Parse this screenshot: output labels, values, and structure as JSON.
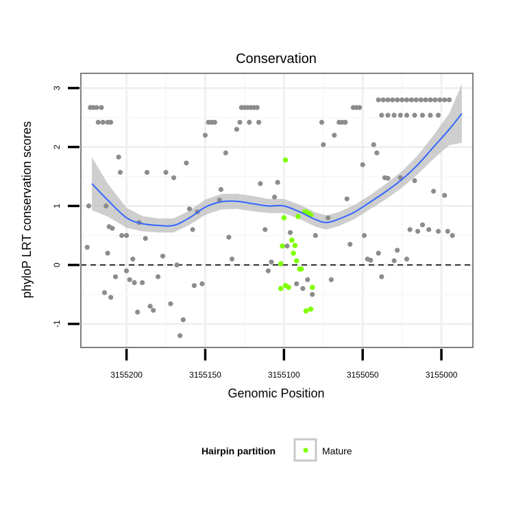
{
  "chart_data": {
    "type": "scatter",
    "title": "Conservation",
    "xlabel": "Genomic Position",
    "ylabel": "phyloP LRT conservation scores",
    "x_reversed": true,
    "xlim": [
      3155229,
      3154980
    ],
    "ylim": [
      -1.4,
      3.25
    ],
    "x_ticks": [
      3155200,
      3155150,
      3155100,
      3155050,
      3155000
    ],
    "x_tick_labels": [
      "3155200",
      "3155150",
      "3155100",
      "3155050",
      "3155000"
    ],
    "y_ticks": [
      -1,
      0,
      1,
      2,
      3
    ],
    "y_tick_labels": [
      "-1",
      "0",
      "1",
      "2",
      "3"
    ],
    "reference_line": {
      "y": 0,
      "style": "dashed"
    },
    "grid": true,
    "legend": {
      "title": "Hairpin partition",
      "entries": [
        {
          "label": "Mature",
          "color": "#7fff00"
        }
      ]
    },
    "colors": {
      "background_points": "#8c8c8c",
      "mature": "#7fff00",
      "smooth": "#3366ff",
      "ribbon": "#bdbdbd"
    },
    "background_points": [
      [
        3155223,
        2.67
      ],
      [
        3155221,
        2.67
      ],
      [
        3155219,
        2.67
      ],
      [
        3155216,
        2.67
      ],
      [
        3155218,
        2.42
      ],
      [
        3155215,
        2.42
      ],
      [
        3155212,
        2.42
      ],
      [
        3155210,
        2.42
      ],
      [
        3155224,
        1.0
      ],
      [
        3155225,
        0.3
      ],
      [
        3155213,
        1.0
      ],
      [
        3155211,
        0.65
      ],
      [
        3155209,
        0.62
      ],
      [
        3155212,
        0.2
      ],
      [
        3155214,
        -0.47
      ],
      [
        3155210,
        -0.55
      ],
      [
        3155207,
        -0.2
      ],
      [
        3155203,
        0.5
      ],
      [
        3155200,
        0.5
      ],
      [
        3155198,
        -0.25
      ],
      [
        3155195,
        -0.3
      ],
      [
        3155193,
        -0.8
      ],
      [
        3155190,
        -0.3
      ],
      [
        3155188,
        0.45
      ],
      [
        3155205,
        1.83
      ],
      [
        3155204,
        1.57
      ],
      [
        3155187,
        1.57
      ],
      [
        3155200,
        -0.1
      ],
      [
        3155196,
        0.1
      ],
      [
        3155192,
        0.72
      ],
      [
        3155185,
        -0.7
      ],
      [
        3155183,
        -0.77
      ],
      [
        3155180,
        -0.2
      ],
      [
        3155177,
        0.15
      ],
      [
        3155175,
        1.57
      ],
      [
        3155172,
        -0.66
      ],
      [
        3155170,
        1.48
      ],
      [
        3155168,
        0.0
      ],
      [
        3155166,
        -1.2
      ],
      [
        3155164,
        -0.93
      ],
      [
        3155162,
        1.73
      ],
      [
        3155160,
        0.95
      ],
      [
        3155158,
        0.6
      ],
      [
        3155157,
        -0.35
      ],
      [
        3155155,
        0.9
      ],
      [
        3155152,
        -0.32
      ],
      [
        3155150,
        2.2
      ],
      [
        3155148,
        2.42
      ],
      [
        3155146,
        2.42
      ],
      [
        3155144,
        2.42
      ],
      [
        3155141,
        1.1
      ],
      [
        3155140,
        1.28
      ],
      [
        3155137,
        1.9
      ],
      [
        3155135,
        0.47
      ],
      [
        3155133,
        0.1
      ],
      [
        3155130,
        2.3
      ],
      [
        3155127,
        2.67
      ],
      [
        3155125,
        2.67
      ],
      [
        3155123,
        2.67
      ],
      [
        3155121,
        2.67
      ],
      [
        3155119,
        2.67
      ],
      [
        3155117,
        2.67
      ],
      [
        3155128,
        2.42
      ],
      [
        3155122,
        2.42
      ],
      [
        3155116,
        2.42
      ],
      [
        3155115,
        1.38
      ],
      [
        3155112,
        0.6
      ],
      [
        3155110,
        -0.1
      ],
      [
        3155108,
        0.05
      ],
      [
        3155106,
        1.15
      ],
      [
        3155104,
        1.4
      ],
      [
        3155098,
        0.32
      ],
      [
        3155096,
        0.55
      ],
      [
        3155092,
        -0.32
      ],
      [
        3155088,
        -0.4
      ],
      [
        3155085,
        -0.25
      ],
      [
        3155082,
        -0.5
      ],
      [
        3155080,
        0.5
      ],
      [
        3155076,
        2.42
      ],
      [
        3155075,
        2.04
      ],
      [
        3155072,
        0.8
      ],
      [
        3155070,
        -0.25
      ],
      [
        3155068,
        2.2
      ],
      [
        3155065,
        2.42
      ],
      [
        3155063,
        2.42
      ],
      [
        3155061,
        2.42
      ],
      [
        3155060,
        1.12
      ],
      [
        3155058,
        0.35
      ],
      [
        3155056,
        2.67
      ],
      [
        3155054,
        2.67
      ],
      [
        3155052,
        2.67
      ],
      [
        3155050,
        1.7
      ],
      [
        3155049,
        0.5
      ],
      [
        3155047,
        0.1
      ],
      [
        3155045,
        0.08
      ],
      [
        3155043,
        2.04
      ],
      [
        3155041,
        1.9
      ],
      [
        3155040,
        0.2
      ],
      [
        3155038,
        -0.2
      ],
      [
        3155036,
        1.48
      ],
      [
        3155034,
        1.47
      ],
      [
        3155030,
        0.07
      ],
      [
        3155026,
        1.48
      ],
      [
        3155020,
        0.6
      ],
      [
        3155017,
        1.43
      ],
      [
        3155015,
        0.57
      ],
      [
        3155012,
        0.68
      ],
      [
        3155008,
        0.6
      ],
      [
        3155005,
        1.25
      ],
      [
        3155002,
        0.57
      ],
      [
        3154998,
        1.18
      ],
      [
        3154996,
        0.57
      ],
      [
        3154993,
        0.5
      ],
      [
        3155022,
        0.1
      ],
      [
        3155028,
        0.25
      ],
      [
        3155040,
        2.8
      ],
      [
        3155037,
        2.8
      ],
      [
        3155034,
        2.8
      ],
      [
        3155031,
        2.8
      ],
      [
        3155028,
        2.8
      ],
      [
        3155025,
        2.8
      ],
      [
        3155022,
        2.8
      ],
      [
        3155019,
        2.8
      ],
      [
        3155016,
        2.8
      ],
      [
        3155013,
        2.8
      ],
      [
        3155010,
        2.8
      ],
      [
        3155007,
        2.8
      ],
      [
        3155004,
        2.8
      ],
      [
        3155001,
        2.8
      ],
      [
        3154998,
        2.8
      ],
      [
        3154995,
        2.8
      ],
      [
        3155038,
        2.54
      ],
      [
        3155034,
        2.54
      ],
      [
        3155030,
        2.54
      ],
      [
        3155026,
        2.54
      ],
      [
        3155022,
        2.54
      ],
      [
        3155017,
        2.54
      ],
      [
        3155012,
        2.54
      ],
      [
        3155007,
        2.54
      ],
      [
        3155002,
        2.54
      ]
    ],
    "mature_points": [
      [
        3155099,
        1.78
      ],
      [
        3155100,
        0.8
      ],
      [
        3155101,
        0.32
      ],
      [
        3155102,
        0.02
      ],
      [
        3155102,
        -0.4
      ],
      [
        3155099,
        -0.35
      ],
      [
        3155097,
        -0.38
      ],
      [
        3155095,
        0.42
      ],
      [
        3155094,
        0.2
      ],
      [
        3155093,
        0.33
      ],
      [
        3155092,
        0.07
      ],
      [
        3155090,
        -0.07
      ],
      [
        3155089,
        -0.07
      ],
      [
        3155087,
        0.9
      ],
      [
        3155086,
        0.9
      ],
      [
        3155084,
        0.87
      ],
      [
        3155083,
        0.85
      ],
      [
        3155086,
        -0.78
      ],
      [
        3155083,
        -0.75
      ],
      [
        3155082,
        -0.38
      ],
      [
        3155091,
        0.82
      ]
    ],
    "smooth_line": [
      [
        3155222,
        1.38
      ],
      [
        3155212,
        1.1
      ],
      [
        3155200,
        0.8
      ],
      [
        3155190,
        0.7
      ],
      [
        3155180,
        0.67
      ],
      [
        3155170,
        0.67
      ],
      [
        3155160,
        0.8
      ],
      [
        3155150,
        0.98
      ],
      [
        3155140,
        1.07
      ],
      [
        3155130,
        1.08
      ],
      [
        3155120,
        1.04
      ],
      [
        3155110,
        1.0
      ],
      [
        3155100,
        1.0
      ],
      [
        3155090,
        0.9
      ],
      [
        3155080,
        0.77
      ],
      [
        3155073,
        0.72
      ],
      [
        3155065,
        0.78
      ],
      [
        3155055,
        0.9
      ],
      [
        3155045,
        1.07
      ],
      [
        3155035,
        1.25
      ],
      [
        3155025,
        1.45
      ],
      [
        3155015,
        1.7
      ],
      [
        3155005,
        2.0
      ],
      [
        3154995,
        2.3
      ],
      [
        3154987,
        2.57
      ]
    ],
    "ribbon_halfwidth": [
      0.45,
      0.28,
      0.17,
      0.13,
      0.12,
      0.12,
      0.12,
      0.13,
      0.13,
      0.13,
      0.13,
      0.12,
      0.12,
      0.12,
      0.12,
      0.12,
      0.12,
      0.12,
      0.12,
      0.13,
      0.14,
      0.16,
      0.2,
      0.27,
      0.5
    ]
  }
}
